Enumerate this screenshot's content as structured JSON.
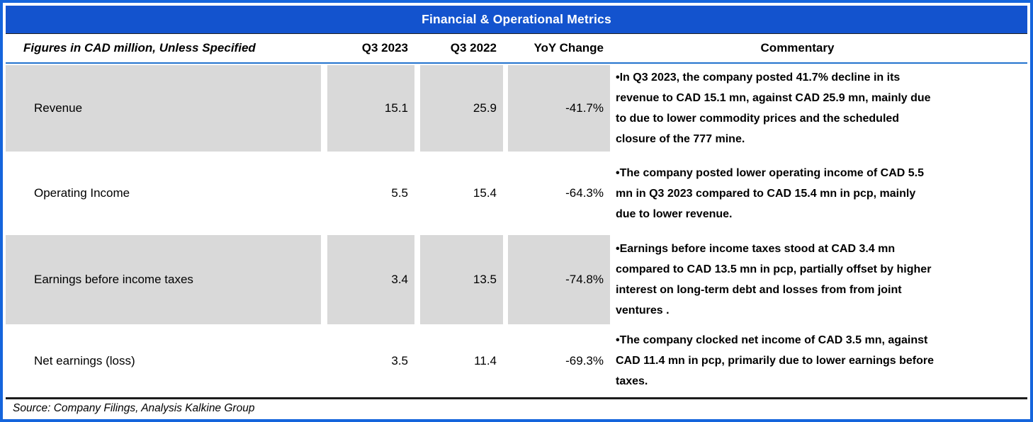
{
  "title": "Financial & Operational Metrics",
  "colors": {
    "accent_blue": "#1353CE",
    "row_shade": "#D9D9D9",
    "divider_black": "#1c1c1c"
  },
  "header": {
    "metric_label": "Figures in CAD million, Unless Specified",
    "col_q3_2023": "Q3 2023",
    "col_q3_2022": "Q3 2022",
    "col_yoy": "YoY Change",
    "col_commentary": "Commentary"
  },
  "rows": [
    {
      "metric": "Revenue",
      "q3_2023": "15.1",
      "q3_2022": "25.9",
      "yoy": "-41.7%",
      "commentary": "•In Q3 2023, the company posted 41.7% decline in its\nrevenue to CAD 15.1 mn, against CAD 25.9 mn, mainly due\nto due to lower commodity prices and the scheduled\nclosure of the 777 mine."
    },
    {
      "metric": "Operating Income",
      "q3_2023": "5.5",
      "q3_2022": "15.4",
      "yoy": "-64.3%",
      "commentary": "•The company posted lower operating income of CAD 5.5\nmn in Q3 2023 compared to CAD 15.4 mn in pcp, mainly\ndue to lower revenue."
    },
    {
      "metric": "Earnings before income taxes",
      "q3_2023": "3.4",
      "q3_2022": "13.5",
      "yoy": "-74.8%",
      "commentary": "•Earnings before income taxes stood at CAD 3.4 mn\ncompared to CAD 13.5 mn in pcp, partially offset by higher\ninterest on long-term debt and losses from from joint\nventures ."
    },
    {
      "metric": "Net earnings (loss)",
      "q3_2023": "3.5",
      "q3_2022": "11.4",
      "yoy": "-69.3%",
      "commentary": "•The company clocked net income of CAD 3.5 mn, against\nCAD 11.4 mn in pcp, primarily due to lower earnings before\ntaxes."
    }
  ],
  "footer": {
    "source": "Source: Company Filings, Analysis Kalkine Group"
  }
}
